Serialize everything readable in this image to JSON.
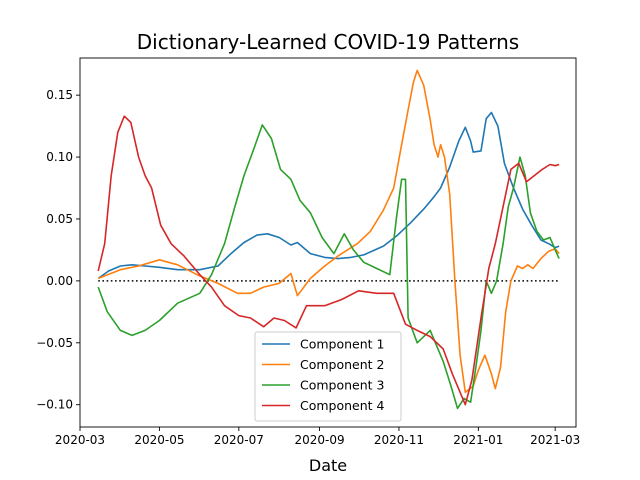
{
  "chart_data": {
    "type": "line",
    "title": "Dictionary-Learned COVID-19 Patterns",
    "xlabel": "Date",
    "ylabel": "",
    "x_axis": {
      "kind": "date",
      "range": [
        "2020-03-01",
        "2021-03-17"
      ],
      "ticks": [
        "2020-03-01",
        "2020-05-01",
        "2020-07-01",
        "2020-09-01",
        "2020-11-01",
        "2021-01-01",
        "2021-03-01"
      ],
      "tick_labels": [
        "2020-03",
        "2020-05",
        "2020-07",
        "2020-09",
        "2020-11",
        "2021-01",
        "2021-03"
      ]
    },
    "y_axis": {
      "range": [
        -0.118,
        0.18
      ],
      "ticks": [
        -0.1,
        -0.05,
        0.0,
        0.05,
        0.1,
        0.15
      ],
      "tick_labels": [
        "−0.10",
        "−0.05",
        "0.00",
        "0.05",
        "0.10",
        "0.15"
      ]
    },
    "grid": false,
    "legend_position": "lower-center",
    "reference_line": {
      "y": 0,
      "style": "dotted",
      "color": "#000000",
      "x_range": [
        "2020-03-15",
        "2021-03-03"
      ]
    },
    "series": [
      {
        "name": "Component 1",
        "color": "#1f77b4",
        "points": [
          [
            "2020-03-15",
            0.002
          ],
          [
            "2020-03-23",
            0.008
          ],
          [
            "2020-04-01",
            0.012
          ],
          [
            "2020-04-10",
            0.013
          ],
          [
            "2020-04-20",
            0.012
          ],
          [
            "2020-05-01",
            0.011
          ],
          [
            "2020-05-15",
            0.009
          ],
          [
            "2020-06-01",
            0.009
          ],
          [
            "2020-06-15",
            0.012
          ],
          [
            "2020-06-25",
            0.022
          ],
          [
            "2020-07-05",
            0.031
          ],
          [
            "2020-07-15",
            0.037
          ],
          [
            "2020-07-23",
            0.038
          ],
          [
            "2020-08-01",
            0.035
          ],
          [
            "2020-08-10",
            0.029
          ],
          [
            "2020-08-15",
            0.031
          ],
          [
            "2020-08-25",
            0.022
          ],
          [
            "2020-09-05",
            0.019
          ],
          [
            "2020-09-15",
            0.018
          ],
          [
            "2020-09-25",
            0.019
          ],
          [
            "2020-10-05",
            0.021
          ],
          [
            "2020-10-20",
            0.028
          ],
          [
            "2020-10-31",
            0.037
          ],
          [
            "2020-11-10",
            0.047
          ],
          [
            "2020-11-20",
            0.058
          ],
          [
            "2020-11-28",
            0.068
          ],
          [
            "2020-12-03",
            0.075
          ],
          [
            "2020-12-10",
            0.092
          ],
          [
            "2020-12-17",
            0.113
          ],
          [
            "2020-12-22",
            0.124
          ],
          [
            "2020-12-26",
            0.113
          ],
          [
            "2020-12-28",
            0.104
          ],
          [
            "2021-01-03",
            0.105
          ],
          [
            "2021-01-07",
            0.131
          ],
          [
            "2021-01-11",
            0.136
          ],
          [
            "2021-01-16",
            0.125
          ],
          [
            "2021-01-21",
            0.095
          ],
          [
            "2021-01-28",
            0.075
          ],
          [
            "2021-02-04",
            0.058
          ],
          [
            "2021-02-11",
            0.045
          ],
          [
            "2021-02-18",
            0.033
          ],
          [
            "2021-02-24",
            0.03
          ],
          [
            "2021-03-01",
            0.027
          ],
          [
            "2021-03-04",
            0.028
          ]
        ]
      },
      {
        "name": "Component 2",
        "color": "#ff7f0e",
        "points": [
          [
            "2020-03-15",
            0.002
          ],
          [
            "2020-04-01",
            0.009
          ],
          [
            "2020-04-15",
            0.012
          ],
          [
            "2020-05-01",
            0.017
          ],
          [
            "2020-05-15",
            0.013
          ],
          [
            "2020-05-30",
            0.005
          ],
          [
            "2020-06-15",
            -0.002
          ],
          [
            "2020-06-30",
            -0.01
          ],
          [
            "2020-07-10",
            -0.01
          ],
          [
            "2020-07-20",
            -0.005
          ],
          [
            "2020-08-01",
            -0.002
          ],
          [
            "2020-08-10",
            0.006
          ],
          [
            "2020-08-15",
            -0.012
          ],
          [
            "2020-08-25",
            0.002
          ],
          [
            "2020-09-05",
            0.012
          ],
          [
            "2020-09-15",
            0.02
          ],
          [
            "2020-09-30",
            0.03
          ],
          [
            "2020-10-10",
            0.04
          ],
          [
            "2020-10-20",
            0.057
          ],
          [
            "2020-10-28",
            0.075
          ],
          [
            "2020-11-03",
            0.11
          ],
          [
            "2020-11-08",
            0.138
          ],
          [
            "2020-11-12",
            0.16
          ],
          [
            "2020-11-15",
            0.17
          ],
          [
            "2020-11-20",
            0.158
          ],
          [
            "2020-11-25",
            0.13
          ],
          [
            "2020-11-28",
            0.11
          ],
          [
            "2020-12-01",
            0.1
          ],
          [
            "2020-12-03",
            0.11
          ],
          [
            "2020-12-06",
            0.1
          ],
          [
            "2020-12-10",
            0.07
          ],
          [
            "2020-12-14",
            0.0
          ],
          [
            "2020-12-18",
            -0.06
          ],
          [
            "2020-12-22",
            -0.09
          ],
          [
            "2020-12-28",
            -0.085
          ],
          [
            "2021-01-01",
            -0.072
          ],
          [
            "2021-01-06",
            -0.06
          ],
          [
            "2021-01-11",
            -0.075
          ],
          [
            "2021-01-14",
            -0.087
          ],
          [
            "2021-01-18",
            -0.07
          ],
          [
            "2021-01-22",
            -0.025
          ],
          [
            "2021-01-26",
            0.0
          ],
          [
            "2021-01-31",
            0.012
          ],
          [
            "2021-02-04",
            0.01
          ],
          [
            "2021-02-08",
            0.013
          ],
          [
            "2021-02-12",
            0.01
          ],
          [
            "2021-02-18",
            0.018
          ],
          [
            "2021-02-24",
            0.024
          ],
          [
            "2021-03-01",
            0.026
          ],
          [
            "2021-03-04",
            0.022
          ]
        ]
      },
      {
        "name": "Component 3",
        "color": "#2ca02c",
        "points": [
          [
            "2020-03-15",
            -0.005
          ],
          [
            "2020-03-22",
            -0.025
          ],
          [
            "2020-04-01",
            -0.04
          ],
          [
            "2020-04-10",
            -0.044
          ],
          [
            "2020-04-20",
            -0.04
          ],
          [
            "2020-05-01",
            -0.032
          ],
          [
            "2020-05-15",
            -0.018
          ],
          [
            "2020-06-01",
            -0.01
          ],
          [
            "2020-06-10",
            0.005
          ],
          [
            "2020-06-20",
            0.03
          ],
          [
            "2020-06-28",
            0.06
          ],
          [
            "2020-07-05",
            0.085
          ],
          [
            "2020-07-12",
            0.105
          ],
          [
            "2020-07-19",
            0.126
          ],
          [
            "2020-07-26",
            0.115
          ],
          [
            "2020-08-02",
            0.09
          ],
          [
            "2020-08-10",
            0.082
          ],
          [
            "2020-08-17",
            0.065
          ],
          [
            "2020-08-25",
            0.055
          ],
          [
            "2020-09-03",
            0.035
          ],
          [
            "2020-09-12",
            0.022
          ],
          [
            "2020-09-20",
            0.038
          ],
          [
            "2020-09-27",
            0.025
          ],
          [
            "2020-10-05",
            0.015
          ],
          [
            "2020-10-15",
            0.01
          ],
          [
            "2020-10-25",
            0.005
          ],
          [
            "2020-10-30",
            0.05
          ],
          [
            "2020-11-03",
            0.082
          ],
          [
            "2020-11-06",
            0.082
          ],
          [
            "2020-11-08",
            -0.03
          ],
          [
            "2020-11-15",
            -0.05
          ],
          [
            "2020-11-25",
            -0.04
          ],
          [
            "2020-12-05",
            -0.065
          ],
          [
            "2020-12-11",
            -0.085
          ],
          [
            "2020-12-16",
            -0.103
          ],
          [
            "2020-12-21",
            -0.095
          ],
          [
            "2020-12-26",
            -0.098
          ],
          [
            "2020-12-30",
            -0.07
          ],
          [
            "2021-01-03",
            -0.04
          ],
          [
            "2021-01-07",
            0.0
          ],
          [
            "2021-01-11",
            -0.01
          ],
          [
            "2021-01-15",
            0.0
          ],
          [
            "2021-01-20",
            0.03
          ],
          [
            "2021-01-24",
            0.06
          ],
          [
            "2021-01-28",
            0.075
          ],
          [
            "2021-02-02",
            0.1
          ],
          [
            "2021-02-06",
            0.085
          ],
          [
            "2021-02-10",
            0.055
          ],
          [
            "2021-02-15",
            0.04
          ],
          [
            "2021-02-20",
            0.033
          ],
          [
            "2021-02-25",
            0.035
          ],
          [
            "2021-03-01",
            0.025
          ],
          [
            "2021-03-04",
            0.018
          ]
        ]
      },
      {
        "name": "Component 4",
        "color": "#d62728",
        "points": [
          [
            "2020-03-15",
            0.008
          ],
          [
            "2020-03-20",
            0.03
          ],
          [
            "2020-03-25",
            0.085
          ],
          [
            "2020-03-30",
            0.12
          ],
          [
            "2020-04-04",
            0.133
          ],
          [
            "2020-04-09",
            0.128
          ],
          [
            "2020-04-15",
            0.1
          ],
          [
            "2020-04-20",
            0.085
          ],
          [
            "2020-04-25",
            0.075
          ],
          [
            "2020-05-02",
            0.045
          ],
          [
            "2020-05-10",
            0.03
          ],
          [
            "2020-05-20",
            0.02
          ],
          [
            "2020-06-01",
            0.005
          ],
          [
            "2020-06-10",
            -0.005
          ],
          [
            "2020-06-20",
            -0.02
          ],
          [
            "2020-07-01",
            -0.028
          ],
          [
            "2020-07-10",
            -0.03
          ],
          [
            "2020-07-20",
            -0.037
          ],
          [
            "2020-07-28",
            -0.03
          ],
          [
            "2020-08-05",
            -0.032
          ],
          [
            "2020-08-14",
            -0.038
          ],
          [
            "2020-08-22",
            -0.02
          ],
          [
            "2020-09-05",
            -0.02
          ],
          [
            "2020-09-18",
            -0.015
          ],
          [
            "2020-10-01",
            -0.008
          ],
          [
            "2020-10-15",
            -0.01
          ],
          [
            "2020-10-28",
            -0.01
          ],
          [
            "2020-11-06",
            -0.035
          ],
          [
            "2020-11-15",
            -0.04
          ],
          [
            "2020-11-25",
            -0.045
          ],
          [
            "2020-12-05",
            -0.055
          ],
          [
            "2020-12-12",
            -0.075
          ],
          [
            "2020-12-18",
            -0.09
          ],
          [
            "2020-12-22",
            -0.1
          ],
          [
            "2020-12-27",
            -0.08
          ],
          [
            "2021-01-03",
            -0.03
          ],
          [
            "2021-01-09",
            0.01
          ],
          [
            "2021-01-14",
            0.03
          ],
          [
            "2021-01-20",
            0.06
          ],
          [
            "2021-01-26",
            0.09
          ],
          [
            "2021-02-01",
            0.095
          ],
          [
            "2021-02-07",
            0.08
          ],
          [
            "2021-02-13",
            0.085
          ],
          [
            "2021-02-19",
            0.09
          ],
          [
            "2021-02-25",
            0.094
          ],
          [
            "2021-03-01",
            0.093
          ],
          [
            "2021-03-04",
            0.094
          ]
        ]
      }
    ]
  }
}
